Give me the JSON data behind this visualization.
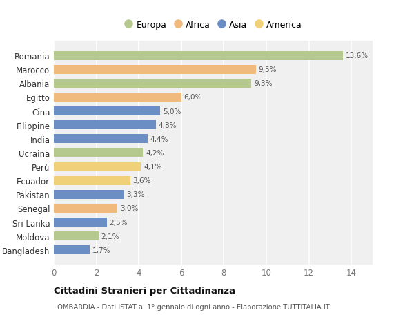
{
  "countries": [
    "Romania",
    "Marocco",
    "Albania",
    "Egitto",
    "Cina",
    "Filippine",
    "India",
    "Ucraina",
    "Perù",
    "Ecuador",
    "Pakistan",
    "Senegal",
    "Sri Lanka",
    "Moldova",
    "Bangladesh"
  ],
  "values": [
    13.6,
    9.5,
    9.3,
    6.0,
    5.0,
    4.8,
    4.4,
    4.2,
    4.1,
    3.6,
    3.3,
    3.0,
    2.5,
    2.1,
    1.7
  ],
  "labels": [
    "13,6%",
    "9,5%",
    "9,3%",
    "6,0%",
    "5,0%",
    "4,8%",
    "4,4%",
    "4,2%",
    "4,1%",
    "3,6%",
    "3,3%",
    "3,0%",
    "2,5%",
    "2,1%",
    "1,7%"
  ],
  "continents": [
    "Europa",
    "Africa",
    "Europa",
    "Africa",
    "Asia",
    "Asia",
    "Asia",
    "Europa",
    "America",
    "America",
    "Asia",
    "Africa",
    "Asia",
    "Europa",
    "Asia"
  ],
  "colors": {
    "Europa": "#b5c98e",
    "Africa": "#f0b97e",
    "Asia": "#6b8ec4",
    "America": "#f0d078"
  },
  "legend_order": [
    "Europa",
    "Africa",
    "Asia",
    "America"
  ],
  "title": "Cittadini Stranieri per Cittadinanza",
  "subtitle": "LOMBARDIA - Dati ISTAT al 1° gennaio di ogni anno - Elaborazione TUTTITALIA.IT",
  "xlim": [
    0,
    15
  ],
  "xticks": [
    0,
    2,
    4,
    6,
    8,
    10,
    12,
    14
  ],
  "bg_color": "#ffffff",
  "plot_bg_color": "#f0f0f0",
  "grid_color": "#ffffff"
}
